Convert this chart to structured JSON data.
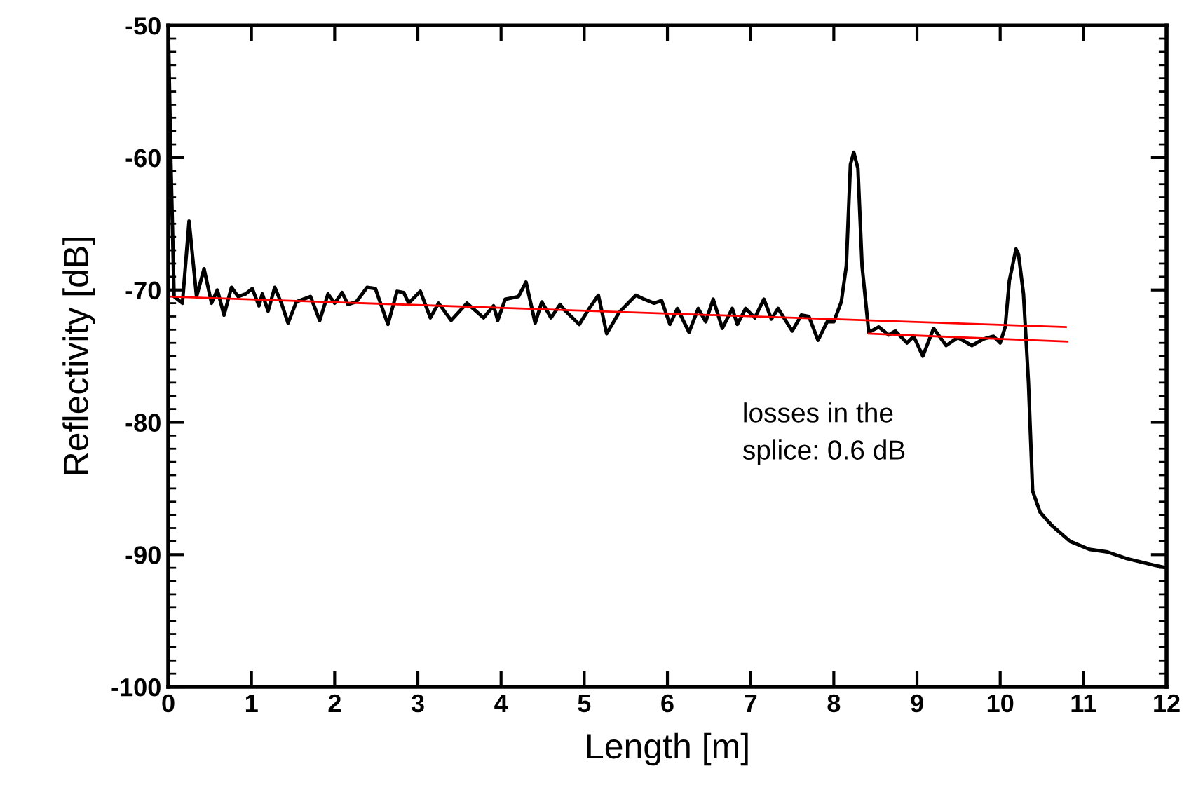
{
  "chart_data": {
    "type": "line",
    "xlabel": "Length [m]",
    "ylabel": "Reflectivity [dB]",
    "xlim": [
      0,
      12
    ],
    "ylim": [
      -100,
      -50
    ],
    "xticks": [
      0,
      1,
      2,
      3,
      4,
      5,
      6,
      7,
      8,
      9,
      10,
      11,
      12
    ],
    "yticks": [
      -100,
      -90,
      -80,
      -70,
      -60,
      -50
    ],
    "grid": false,
    "legend": false,
    "marker": "none",
    "line_style": "solid",
    "annotations": [
      "losses in the\nsplice: 0.6 dB"
    ],
    "series": [
      {
        "color": "#000000",
        "x": [
          0.0,
          0.03,
          0.07,
          0.17,
          0.25,
          0.34,
          0.43,
          0.52,
          0.59,
          0.67,
          0.76,
          0.84,
          0.93,
          1.01,
          1.09,
          1.13,
          1.2,
          1.28,
          1.36,
          1.44,
          1.54,
          1.71,
          1.82,
          1.92,
          2.0,
          2.09,
          2.16,
          2.26,
          2.39,
          2.49,
          2.64,
          2.75,
          2.83,
          2.89,
          3.03,
          3.15,
          3.25,
          3.4,
          3.59,
          3.79,
          3.91,
          3.96,
          4.05,
          4.21,
          4.3,
          4.41,
          4.49,
          4.6,
          4.71,
          4.76,
          4.94,
          5.06,
          5.17,
          5.27,
          5.42,
          5.62,
          5.72,
          5.84,
          5.93,
          6.03,
          6.12,
          6.26,
          6.37,
          6.46,
          6.55,
          6.66,
          6.78,
          6.84,
          6.94,
          7.05,
          7.16,
          7.25,
          7.33,
          7.5,
          7.61,
          7.7,
          7.81,
          7.92,
          8.0,
          8.09,
          8.15,
          8.2,
          8.24,
          8.29,
          8.34,
          8.42,
          8.54,
          8.66,
          8.74,
          8.88,
          8.96,
          9.07,
          9.2,
          9.35,
          9.49,
          9.66,
          9.8,
          9.92,
          10.0,
          10.06,
          10.11,
          10.19,
          10.22,
          10.28,
          10.34,
          10.39,
          10.48,
          10.62,
          10.84,
          11.07,
          11.29,
          11.52,
          11.85,
          12.0
        ],
        "values": [
          -50,
          -60,
          -70.5,
          -71.0,
          -64.8,
          -70.5,
          -68.4,
          -71.0,
          -70.0,
          -71.9,
          -69.8,
          -70.5,
          -70.3,
          -69.9,
          -71.2,
          -70.3,
          -71.6,
          -69.8,
          -71.0,
          -72.5,
          -70.9,
          -70.5,
          -72.3,
          -70.3,
          -71.0,
          -70.2,
          -71.1,
          -70.9,
          -69.8,
          -69.9,
          -72.6,
          -70.1,
          -70.2,
          -71.0,
          -70.1,
          -72.1,
          -71.0,
          -72.3,
          -71.0,
          -72.1,
          -71.2,
          -72.3,
          -70.7,
          -70.5,
          -69.4,
          -72.5,
          -70.9,
          -72.1,
          -71.1,
          -71.5,
          -72.6,
          -71.4,
          -70.4,
          -73.3,
          -71.7,
          -70.4,
          -70.7,
          -71.0,
          -70.8,
          -72.6,
          -71.4,
          -73.2,
          -71.4,
          -72.4,
          -70.7,
          -72.9,
          -71.4,
          -72.6,
          -71.4,
          -72.1,
          -70.7,
          -72.2,
          -71.4,
          -73.1,
          -71.9,
          -72.0,
          -73.8,
          -72.4,
          -72.4,
          -70.9,
          -68.2,
          -60.5,
          -59.6,
          -60.8,
          -68.2,
          -73.2,
          -72.8,
          -73.4,
          -73.1,
          -74.0,
          -73.5,
          -75.0,
          -72.9,
          -74.2,
          -73.6,
          -74.2,
          -73.7,
          -73.5,
          -74.0,
          -72.8,
          -69.3,
          -66.9,
          -67.3,
          -70.3,
          -77.0,
          -85.2,
          -86.8,
          -87.8,
          -89.0,
          -89.6,
          -89.8,
          -90.3,
          -90.8,
          -91.0
        ]
      },
      {
        "color": "#ff0000",
        "x": [
          0.0,
          10.79
        ],
        "values": [
          -70.5,
          -72.8
        ]
      },
      {
        "color": "#ff0000",
        "x": [
          8.42,
          10.81
        ],
        "values": [
          -73.3,
          -73.9
        ]
      }
    ]
  }
}
